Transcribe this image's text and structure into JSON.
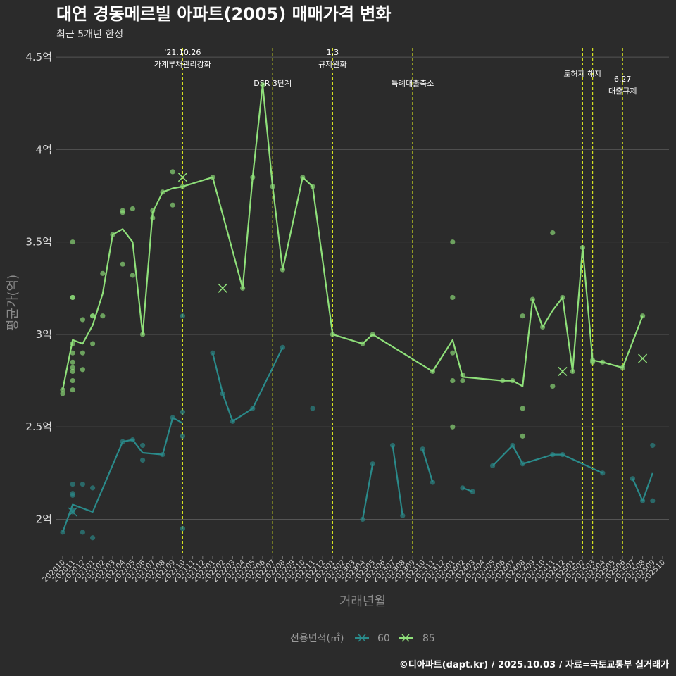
{
  "title": "대연 경동메르빌 아파트(2005) 매매가격 변화",
  "subtitle": "최근 5개년 한정",
  "caption": "©디아파트(dapt.kr) / 2025.10.03 / 자료=국토교통부 실거래가",
  "colors": {
    "background": "#2b2b2b",
    "grid": "#555555",
    "event_line": "#d4e021",
    "series_60": "#2a8a8a",
    "series_85": "#8fe07a"
  },
  "chart_data": {
    "type": "line",
    "xlabel": "거래년월",
    "ylabel": "평균가(억)",
    "ylim": [
      1.8,
      4.55
    ],
    "yticks": [
      2,
      2.5,
      3,
      3.5,
      4,
      4.5
    ],
    "ytick_labels": [
      "2억",
      "2.5억",
      "3억",
      "3.5억",
      "4억",
      "4.5억"
    ],
    "categories": [
      "202010",
      "202011",
      "202012",
      "202101",
      "202102",
      "202103",
      "202104",
      "202105",
      "202106",
      "202107",
      "202108",
      "202109",
      "202110",
      "202111",
      "202112",
      "202201",
      "202202",
      "202203",
      "202204",
      "202205",
      "202206",
      "202207",
      "202208",
      "202209",
      "202210",
      "202211",
      "202212",
      "202301",
      "202302",
      "202303",
      "202304",
      "202305",
      "202306",
      "202307",
      "202308",
      "202309",
      "202310",
      "202311",
      "202312",
      "202401",
      "202402",
      "202403",
      "202404",
      "202405",
      "202406",
      "202407",
      "202408",
      "202409",
      "202410",
      "202411",
      "202412",
      "202501",
      "202502",
      "202503",
      "202504",
      "202505",
      "202506",
      "202507",
      "202508",
      "202509",
      "202510"
    ],
    "legend": {
      "title": "전용면적(㎡)",
      "entries": [
        "60",
        "85"
      ],
      "position": "bottom"
    },
    "events": [
      {
        "month": "202110",
        "label": "'21.10.26\n가계부채관리강화",
        "row": 0
      },
      {
        "month": "202207",
        "label": "DSR 3단계",
        "row": 1
      },
      {
        "month": "202301",
        "label": "1.3\n규제완화",
        "row": 0
      },
      {
        "month": "202309",
        "label": "특례대출축소",
        "row": 1
      },
      {
        "month": "202502",
        "label": "토허제 해제",
        "row": 0.5
      },
      {
        "month": "202503",
        "label": "",
        "row": 0
      },
      {
        "month": "202506",
        "label": "6.27\n대출규제",
        "row": 1.4
      }
    ],
    "series": [
      {
        "name": "60",
        "segments": [
          [
            [
              "202010",
              1.93
            ],
            [
              "202011",
              2.08
            ],
            [
              "202101",
              2.04
            ],
            [
              "202104",
              2.42
            ],
            [
              "202105",
              2.43
            ],
            [
              "202106",
              2.36
            ],
            [
              "202108",
              2.35
            ],
            [
              "202109",
              2.55
            ],
            [
              "202110",
              2.52
            ]
          ],
          [
            [
              "202201",
              2.9
            ],
            [
              "202202",
              2.68
            ],
            [
              "202203",
              2.53
            ],
            [
              "202205",
              2.6
            ],
            [
              "202208",
              2.93
            ]
          ],
          [
            [
              "202304",
              2.0
            ],
            [
              "202305",
              2.3
            ]
          ],
          [
            [
              "202307",
              2.4
            ],
            [
              "202308",
              2.02
            ]
          ],
          [
            [
              "202310",
              2.38
            ],
            [
              "202311",
              2.2
            ]
          ],
          [
            [
              "202402",
              2.17
            ],
            [
              "202403",
              2.15
            ]
          ],
          [
            [
              "202405",
              2.29
            ],
            [
              "202407",
              2.4
            ],
            [
              "202408",
              2.3
            ],
            [
              "202411",
              2.35
            ],
            [
              "202412",
              2.35
            ],
            [
              "202504",
              2.25
            ]
          ],
          [
            [
              "202507",
              2.22
            ],
            [
              "202508",
              2.1
            ],
            [
              "202509",
              2.25
            ]
          ]
        ],
        "points": [
          [
            "202010",
            1.93
          ],
          [
            "202011",
            2.19
          ],
          [
            "202011",
            2.14
          ],
          [
            "202011",
            2.13
          ],
          [
            "202011",
            2.05
          ],
          [
            "202011",
            2.04
          ],
          [
            "202012",
            2.19
          ],
          [
            "202012",
            1.93
          ],
          [
            "202101",
            2.17
          ],
          [
            "202101",
            1.9
          ],
          [
            "202104",
            2.42
          ],
          [
            "202105",
            2.43
          ],
          [
            "202106",
            2.4
          ],
          [
            "202106",
            2.32
          ],
          [
            "202108",
            2.35
          ],
          [
            "202109",
            2.55
          ],
          [
            "202110",
            2.58
          ],
          [
            "202110",
            2.45
          ],
          [
            "202110",
            1.95
          ],
          [
            "202110",
            3.1
          ],
          [
            "202201",
            2.9
          ],
          [
            "202202",
            2.68
          ],
          [
            "202203",
            2.53
          ],
          [
            "202205",
            2.6
          ],
          [
            "202208",
            2.93
          ],
          [
            "202211",
            2.6
          ],
          [
            "202304",
            2.0
          ],
          [
            "202305",
            2.3
          ],
          [
            "202307",
            2.4
          ],
          [
            "202308",
            2.02
          ],
          [
            "202310",
            2.38
          ],
          [
            "202311",
            2.2
          ],
          [
            "202402",
            2.17
          ],
          [
            "202403",
            2.15
          ],
          [
            "202405",
            2.29
          ],
          [
            "202407",
            2.4
          ],
          [
            "202408",
            2.3
          ],
          [
            "202411",
            2.35
          ],
          [
            "202412",
            2.35
          ],
          [
            "202504",
            2.25
          ],
          [
            "202507",
            2.22
          ],
          [
            "202508",
            2.1
          ],
          [
            "202509",
            2.4
          ],
          [
            "202509",
            2.1
          ]
        ],
        "cross_markers": [
          [
            "202011",
            2.04
          ]
        ]
      },
      {
        "name": "85",
        "segments": [
          [
            [
              "202010",
              2.7
            ],
            [
              "202011",
              2.97
            ],
            [
              "202012",
              2.95
            ],
            [
              "202101",
              3.05
            ],
            [
              "202102",
              3.22
            ],
            [
              "202103",
              3.54
            ],
            [
              "202104",
              3.57
            ],
            [
              "202105",
              3.5
            ],
            [
              "202106",
              3.0
            ],
            [
              "202107",
              3.66
            ],
            [
              "202108",
              3.77
            ],
            [
              "202109",
              3.79
            ],
            [
              "202110",
              3.8
            ],
            [
              "202201",
              3.85
            ],
            [
              "202204",
              3.25
            ],
            [
              "202205",
              3.85
            ],
            [
              "202206",
              4.35
            ],
            [
              "202207",
              3.8
            ],
            [
              "202208",
              3.35
            ],
            [
              "202210",
              3.85
            ],
            [
              "202211",
              3.8
            ],
            [
              "202301",
              3.0
            ],
            [
              "202304",
              2.95
            ],
            [
              "202305",
              3.0
            ],
            [
              "202311",
              2.8
            ],
            [
              "202401",
              2.97
            ],
            [
              "202402",
              2.77
            ],
            [
              "202406",
              2.75
            ],
            [
              "202407",
              2.75
            ],
            [
              "202408",
              2.72
            ],
            [
              "202409",
              3.19
            ],
            [
              "202410",
              3.04
            ],
            [
              "202411",
              3.13
            ],
            [
              "202412",
              3.2
            ],
            [
              "202501",
              2.8
            ],
            [
              "202502",
              3.47
            ],
            [
              "202503",
              2.86
            ],
            [
              "202504",
              2.85
            ],
            [
              "202506",
              2.82
            ],
            [
              "202508",
              3.1
            ]
          ]
        ],
        "points": [
          [
            "202010",
            2.7
          ],
          [
            "202010",
            2.68
          ],
          [
            "202011",
            3.5
          ],
          [
            "202011",
            3.2
          ],
          [
            "202011",
            3.2
          ],
          [
            "202011",
            2.95
          ],
          [
            "202011",
            2.9
          ],
          [
            "202011",
            2.85
          ],
          [
            "202011",
            2.82
          ],
          [
            "202011",
            2.8
          ],
          [
            "202011",
            2.75
          ],
          [
            "202011",
            2.7
          ],
          [
            "202012",
            3.08
          ],
          [
            "202012",
            2.9
          ],
          [
            "202012",
            2.81
          ],
          [
            "202101",
            3.1
          ],
          [
            "202101",
            3.1
          ],
          [
            "202101",
            2.95
          ],
          [
            "202102",
            3.33
          ],
          [
            "202102",
            3.1
          ],
          [
            "202103",
            3.54
          ],
          [
            "202104",
            3.67
          ],
          [
            "202104",
            3.66
          ],
          [
            "202104",
            3.38
          ],
          [
            "202105",
            3.68
          ],
          [
            "202105",
            3.32
          ],
          [
            "202106",
            3.0
          ],
          [
            "202107",
            3.67
          ],
          [
            "202107",
            3.63
          ],
          [
            "202108",
            3.77
          ],
          [
            "202109",
            3.88
          ],
          [
            "202109",
            3.7
          ],
          [
            "202110",
            3.8
          ],
          [
            "202201",
            3.85
          ],
          [
            "202204",
            3.25
          ],
          [
            "202205",
            3.85
          ],
          [
            "202206",
            4.35
          ],
          [
            "202207",
            3.8
          ],
          [
            "202208",
            3.35
          ],
          [
            "202210",
            3.85
          ],
          [
            "202211",
            3.8
          ],
          [
            "202301",
            3.0
          ],
          [
            "202304",
            2.95
          ],
          [
            "202305",
            3.0
          ],
          [
            "202311",
            2.8
          ],
          [
            "202401",
            3.5
          ],
          [
            "202401",
            3.2
          ],
          [
            "202401",
            2.9
          ],
          [
            "202401",
            2.75
          ],
          [
            "202401",
            2.5
          ],
          [
            "202402",
            2.78
          ],
          [
            "202402",
            2.75
          ],
          [
            "202406",
            2.75
          ],
          [
            "202407",
            2.75
          ],
          [
            "202408",
            3.1
          ],
          [
            "202408",
            2.6
          ],
          [
            "202408",
            2.45
          ],
          [
            "202409",
            3.19
          ],
          [
            "202410",
            3.04
          ],
          [
            "202411",
            3.55
          ],
          [
            "202411",
            2.72
          ],
          [
            "202412",
            3.2
          ],
          [
            "202501",
            2.8
          ],
          [
            "202502",
            3.47
          ],
          [
            "202503",
            2.86
          ],
          [
            "202503",
            2.85
          ],
          [
            "202504",
            2.85
          ],
          [
            "202506",
            2.82
          ],
          [
            "202508",
            3.1
          ]
        ],
        "cross_markers": [
          [
            "202110",
            3.85
          ],
          [
            "202202",
            3.25
          ],
          [
            "202412",
            2.8
          ],
          [
            "202508",
            2.87
          ]
        ]
      }
    ]
  }
}
